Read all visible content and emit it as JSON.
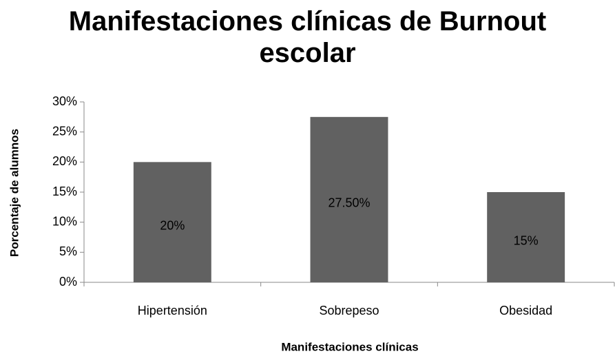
{
  "chart_data": {
    "type": "bar",
    "title": "Manifestaciones clínicas de Burnout escolar",
    "x_label": "Manifestaciones clínicas",
    "y_label": "Porcentaje de alumnos",
    "categories": [
      "Hipertensión",
      "Sobrepeso",
      "Obesidad"
    ],
    "values": [
      20,
      27.5,
      15
    ],
    "value_labels": [
      "20%",
      "27.50%",
      "15%"
    ],
    "color": "#616161",
    "ylim": [
      0,
      30
    ],
    "yticks": [
      {
        "value": 0,
        "label": "0%"
      },
      {
        "value": 5,
        "label": "5%"
      },
      {
        "value": 10,
        "label": "10%"
      },
      {
        "value": 15,
        "label": "15%"
      },
      {
        "value": 20,
        "label": "20%"
      },
      {
        "value": 25,
        "label": "25%"
      },
      {
        "value": 30,
        "label": "30%"
      }
    ],
    "grid": false
  }
}
